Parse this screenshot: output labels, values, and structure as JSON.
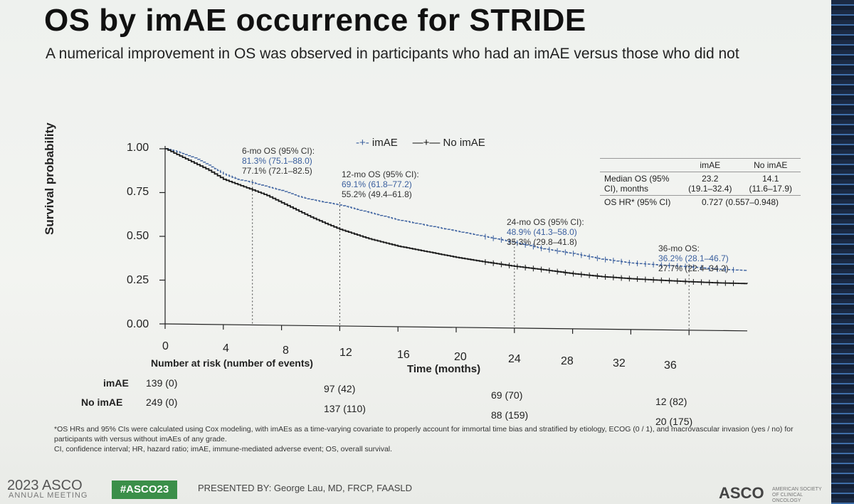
{
  "slide": {
    "title": "OS by imAE occurrence for STRIDE",
    "subtitle_line1": "A numerical improvement in OS was observed in participants who had an imAE versus those who did not"
  },
  "chart_data": {
    "type": "line",
    "subtype": "kaplan-meier",
    "title": "OS by imAE occurrence for STRIDE",
    "xlabel": "Time (months)",
    "ylabel": "Survival probability",
    "xlim": [
      0,
      40
    ],
    "ylim": [
      0,
      1
    ],
    "x_ticks": [
      "0",
      "4",
      "8",
      "12",
      "16",
      "20",
      "24",
      "28",
      "32",
      "36"
    ],
    "y_ticks": [
      "0.00",
      "0.25",
      "0.50",
      "0.75",
      "1.00"
    ],
    "legend_position": "top-center",
    "series": [
      {
        "name": "imAE",
        "color": "#3a5f9e",
        "style": "dashed",
        "x": [
          0,
          1,
          2,
          3,
          4,
          5,
          6,
          7,
          8,
          9,
          10,
          11,
          12,
          14,
          16,
          18,
          20,
          22,
          24,
          26,
          28,
          30,
          32,
          34,
          36,
          38,
          40
        ],
        "y": [
          1.0,
          0.98,
          0.95,
          0.91,
          0.86,
          0.83,
          0.813,
          0.79,
          0.77,
          0.74,
          0.72,
          0.705,
          0.691,
          0.65,
          0.61,
          0.58,
          0.55,
          0.52,
          0.489,
          0.455,
          0.43,
          0.4,
          0.38,
          0.37,
          0.362,
          0.35,
          0.345
        ]
      },
      {
        "name": "No imAE",
        "color": "#1a1a1a",
        "style": "solid",
        "x": [
          0,
          1,
          2,
          3,
          4,
          5,
          6,
          7,
          8,
          9,
          10,
          11,
          12,
          14,
          16,
          18,
          20,
          22,
          24,
          26,
          28,
          30,
          32,
          34,
          36,
          38,
          40
        ],
        "y": [
          1.0,
          0.96,
          0.92,
          0.88,
          0.83,
          0.8,
          0.771,
          0.74,
          0.7,
          0.66,
          0.62,
          0.585,
          0.552,
          0.5,
          0.46,
          0.43,
          0.4,
          0.375,
          0.353,
          0.335,
          0.315,
          0.3,
          0.29,
          0.283,
          0.277,
          0.272,
          0.27
        ]
      }
    ],
    "reference_times": [
      6,
      12,
      24,
      36
    ],
    "annotations": [
      {
        "label": "6-mo OS (95% CI):",
        "imae": "81.3% (75.1–88.0)",
        "noimae": "77.1% (72.1–82.5)"
      },
      {
        "label": "12-mo OS (95% CI):",
        "imae": "69.1% (61.8–77.2)",
        "noimae": "55.2% (49.4–61.8)"
      },
      {
        "label": "24-mo OS (95% CI):",
        "imae": "48.9% (41.3–58.0)",
        "noimae": "35.3% (29.8–41.8)"
      },
      {
        "label": "36-mo OS:",
        "imae": "36.2% (28.1–46.7)",
        "noimae": "27.7% (22.4–34.2)"
      }
    ],
    "summary_table": {
      "col1": "imAE",
      "col2": "No imAE",
      "row1_label": "Median OS (95% CI), months",
      "row1_imae": "23.2",
      "row1_imae_ci": "(19.1–32.4)",
      "row1_noimae": "14.1",
      "row1_noimae_ci": "(11.6–17.9)",
      "row2_label": "OS HR* (95% CI)",
      "row2_value": "0.727 (0.557–0.948)"
    },
    "risk_table": {
      "title": "Number at risk (number of events)",
      "imae_label": "imAE",
      "noimae_label": "No imAE",
      "imae": [
        "139 (0)",
        "97 (42)",
        "69 (70)",
        "12 (82)"
      ],
      "noimae": [
        "249 (0)",
        "137 (110)",
        "88 (159)",
        "20 (175)"
      ]
    }
  },
  "footnote": {
    "line1": "*OS HRs and 95% CIs were calculated using Cox modeling, with imAEs as a time-varying covariate to properly account for immortal time bias and stratified by etiology, ECOG (0 / 1), and macrovascular invasion (yes / no) for participants with versus without imAEs of any grade.",
    "line2": "CI, confidence interval; HR, hazard ratio; imAE, immune-mediated adverse event; OS, overall survival."
  },
  "footer": {
    "year_asco": "2023 ASCO",
    "annual": "ANNUAL MEETING",
    "hashtag": "#ASCO23",
    "presenter": "PRESENTED BY: George Lau, MD, FRCP, FAASLD",
    "logo": "ASCO",
    "society": "AMERICAN SOCIETY OF CLINICAL ONCOLOGY"
  }
}
